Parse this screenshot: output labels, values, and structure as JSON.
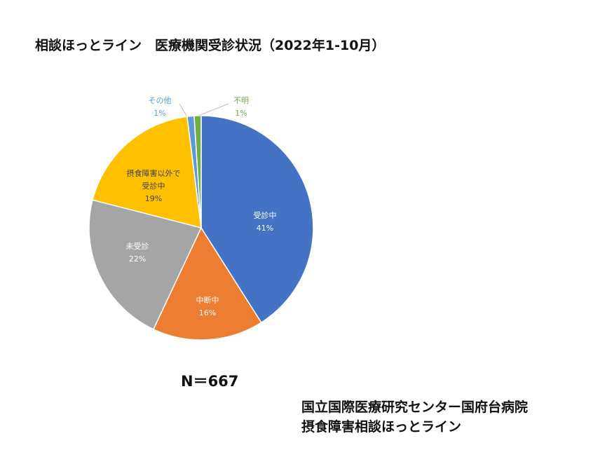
{
  "page": {
    "title": "相談ほっとライン　医療機関受診状況（2022年1-10月）",
    "n_label": "N＝667",
    "org_line1": "国立国際医療研究センター国府台病院",
    "org_line2": "摂食障害相談ほっとライン"
  },
  "chart_data": {
    "type": "pie",
    "start": "12 o'clock, clockwise",
    "slices": [
      {
        "label": [
          "受診中"
        ],
        "value": 41,
        "value_label": "41%",
        "color": "#4472C4",
        "label_color": "#ffffff"
      },
      {
        "label": [
          "中断中"
        ],
        "value": 16,
        "value_label": "16%",
        "color": "#ED7D31",
        "label_color": "#ffffff"
      },
      {
        "label": [
          "未受診"
        ],
        "value": 22,
        "value_label": "22%",
        "color": "#A5A5A5",
        "label_color": "#ffffff"
      },
      {
        "label": [
          "摂食障害以外で",
          "受診中"
        ],
        "value": 19,
        "value_label": "19%",
        "color": "#FFC000",
        "label_color": "#404040"
      },
      {
        "label": [
          "その他"
        ],
        "value": 1,
        "value_label": "1%",
        "color": "#5B9BD5",
        "label_color": "#5B9BD5"
      },
      {
        "label": [
          "不明"
        ],
        "value": 1,
        "value_label": "1%",
        "color": "#70AD47",
        "label_color": "#70AD47"
      }
    ]
  }
}
